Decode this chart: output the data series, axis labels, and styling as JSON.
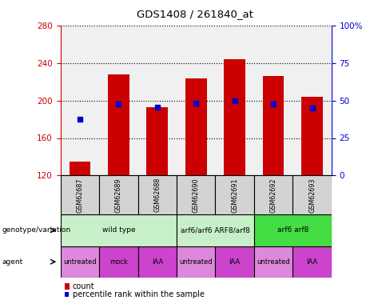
{
  "title": "GDS1408 / 261840_at",
  "samples": [
    "GSM62687",
    "GSM62689",
    "GSM62688",
    "GSM62690",
    "GSM62691",
    "GSM62692",
    "GSM62693"
  ],
  "bar_heights": [
    135,
    228,
    193,
    224,
    244,
    226,
    204
  ],
  "bar_base": 120,
  "percentile_y": [
    180,
    196,
    193,
    197,
    200,
    196,
    192
  ],
  "ylim_left": [
    120,
    280
  ],
  "ylim_right": [
    0,
    100
  ],
  "yticks_left": [
    120,
    160,
    200,
    240,
    280
  ],
  "yticks_right": [
    0,
    25,
    50,
    75,
    100
  ],
  "bar_color": "#cc0000",
  "blue_square_color": "#0000cc",
  "bg_color": "#ffffff",
  "plot_bg_color": "#f0f0f0",
  "genotype_groups": [
    {
      "label": "wild type",
      "start": 0,
      "end": 3,
      "color": "#c8f0c8"
    },
    {
      "label": "arf6/arf6 ARF8/arf8",
      "start": 3,
      "end": 5,
      "color": "#c8f0c8"
    },
    {
      "label": "arf6 arf8",
      "start": 5,
      "end": 7,
      "color": "#44dd44"
    }
  ],
  "agent_groups": [
    {
      "label": "untreated",
      "start": 0,
      "end": 1,
      "color": "#dd88dd"
    },
    {
      "label": "mock",
      "start": 1,
      "end": 2,
      "color": "#cc44cc"
    },
    {
      "label": "IAA",
      "start": 2,
      "end": 3,
      "color": "#cc44cc"
    },
    {
      "label": "untreated",
      "start": 3,
      "end": 4,
      "color": "#dd88dd"
    },
    {
      "label": "IAA",
      "start": 4,
      "end": 5,
      "color": "#cc44cc"
    },
    {
      "label": "untreated",
      "start": 5,
      "end": 6,
      "color": "#dd88dd"
    },
    {
      "label": "IAA",
      "start": 6,
      "end": 7,
      "color": "#cc44cc"
    }
  ],
  "legend_count_color": "#cc0000",
  "legend_pct_color": "#0000cc",
  "left_axis_color": "#cc0000",
  "right_axis_color": "#0000cc",
  "sample_label_bg": "#d3d3d3"
}
